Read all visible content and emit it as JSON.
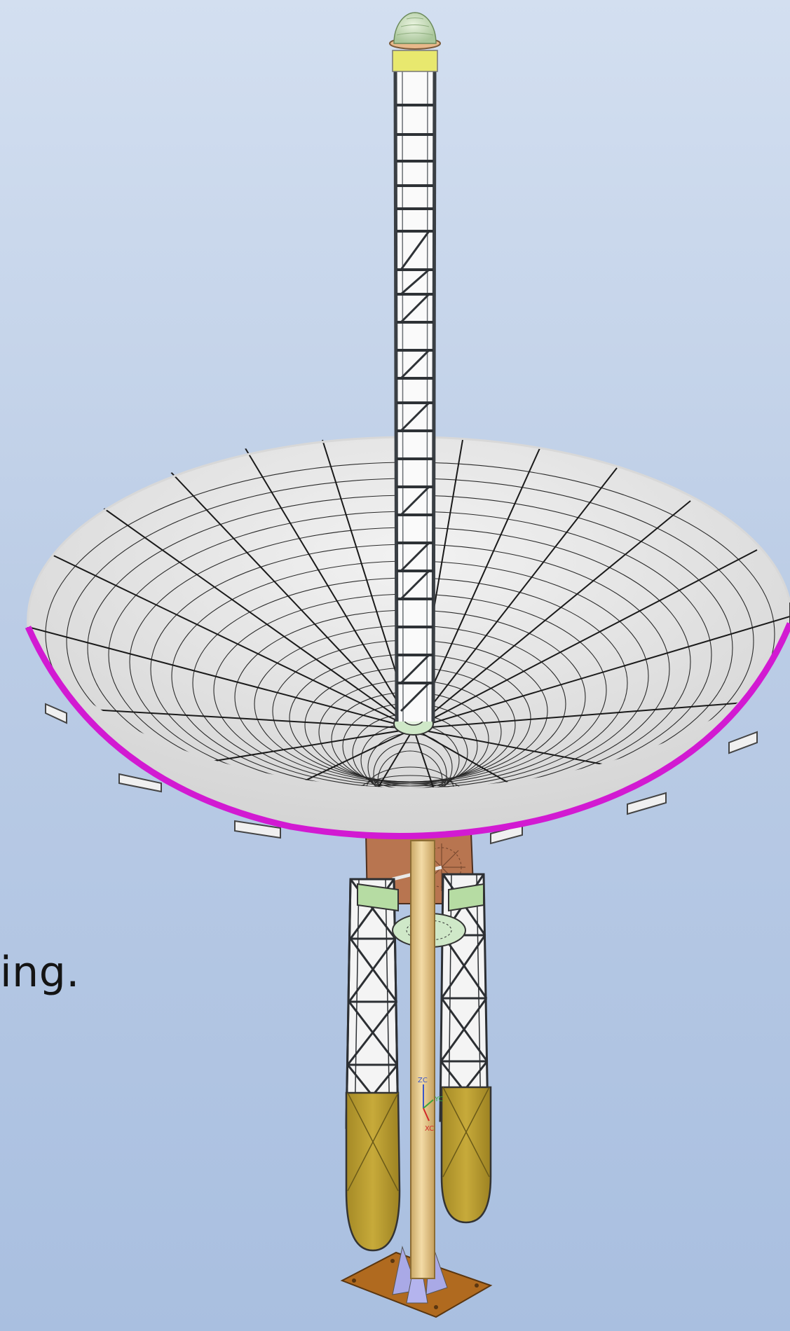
{
  "slide": {
    "text_fragment": "ing."
  },
  "model": {
    "triad_labels": {
      "z": "ZC",
      "y": "YC",
      "x": "XC"
    }
  },
  "colors": {
    "background_top": "#d3dff0",
    "background_bottom": "#a9bfe0",
    "dish_rim": "#d21ad2",
    "feed_mast": "#3a3f44",
    "pedestal_tube": "#e8c98c",
    "counterweight": "#b4972a",
    "base_plate": "#b06a1f",
    "gusset": "#a9a9e6",
    "feed_dome": "#cfe3c0",
    "hub_ring": "#cfe8c8",
    "elevation_plate": "#b87550",
    "platform": "#cfe8c8"
  }
}
